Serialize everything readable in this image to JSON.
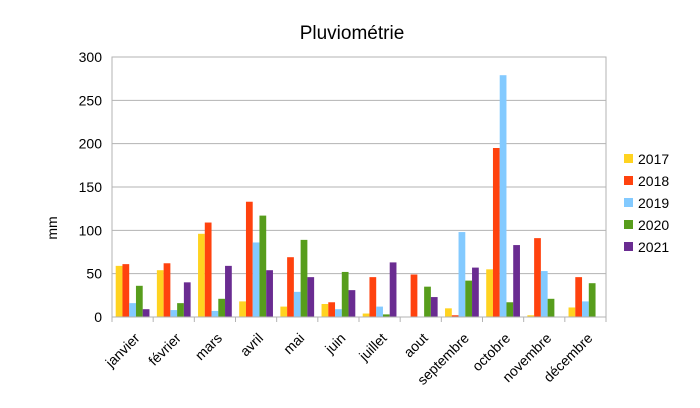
{
  "chart_data": {
    "type": "bar",
    "title": "Pluviométrie",
    "xlabel": "",
    "ylabel": "mm",
    "ylim": [
      0,
      300
    ],
    "yticks": [
      0,
      50,
      100,
      150,
      200,
      250,
      300
    ],
    "grid": "horizontal",
    "legend_position": "right",
    "categories": [
      "janvier",
      "février",
      "mars",
      "avril",
      "mai",
      "juin",
      "juillet",
      "aout",
      "septembre",
      "octobre",
      "novembre",
      "décembre"
    ],
    "series": [
      {
        "name": "2017",
        "color": "#ffd320",
        "values": [
          59,
          54,
          96,
          18,
          12,
          15,
          4,
          0,
          10,
          55,
          2,
          11
        ]
      },
      {
        "name": "2018",
        "color": "#ff420e",
        "values": [
          61,
          62,
          109,
          133,
          69,
          17,
          46,
          49,
          2,
          195,
          91,
          46
        ]
      },
      {
        "name": "2019",
        "color": "#83caff",
        "values": [
          16,
          8,
          7,
          86,
          29,
          9,
          12,
          0,
          98,
          279,
          53,
          18
        ]
      },
      {
        "name": "2020",
        "color": "#579d1c",
        "values": [
          36,
          16,
          21,
          117,
          89,
          52,
          3,
          35,
          42,
          17,
          21,
          39
        ]
      },
      {
        "name": "2021",
        "color": "#6a2c91",
        "values": [
          9,
          40,
          59,
          54,
          46,
          31,
          63,
          23,
          57,
          83,
          0,
          0
        ]
      }
    ]
  }
}
